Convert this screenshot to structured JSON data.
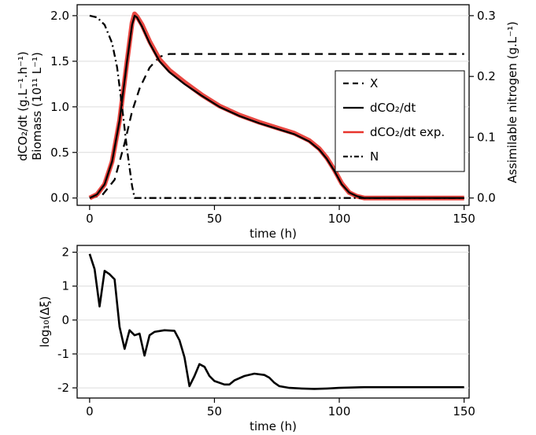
{
  "chart_data": [
    {
      "type": "line",
      "xlabel": "time (h)",
      "ylabel_left_line1": "dCO₂/dt (g.L⁻¹.h⁻¹)",
      "ylabel_left_line2": "Biomass (10¹¹ L⁻¹)",
      "ylabel_right": "Assimilable nitrogen (g.L⁻¹)",
      "xlim": [
        -5,
        152
      ],
      "ylim_left": [
        -0.08,
        2.12
      ],
      "ylim_right": [
        -0.012,
        0.318
      ],
      "x_ticks": [
        "0",
        "50",
        "100",
        "150"
      ],
      "y_left_ticks": [
        "0.0",
        "0.5",
        "1.0",
        "1.5",
        "2.0"
      ],
      "y_right_ticks": [
        "0.0",
        "0.1",
        "0.2",
        "0.3"
      ],
      "grid": "horizontal",
      "legend_position": "right",
      "series": [
        {
          "name": "X",
          "axis": "left",
          "style": "dashed",
          "color": "#000000",
          "x": [
            0,
            5,
            10,
            14,
            17,
            20,
            24,
            28,
            32,
            150
          ],
          "y": [
            0.0,
            0.03,
            0.2,
            0.6,
            0.95,
            1.2,
            1.43,
            1.55,
            1.58,
            1.58
          ]
        },
        {
          "name": "dCO₂/dt",
          "axis": "left",
          "style": "solid",
          "color": "#000000",
          "x": [
            0,
            3,
            6,
            9,
            12,
            15,
            17,
            18,
            19,
            21,
            24,
            28,
            32,
            38,
            45,
            52,
            60,
            68,
            75,
            82,
            88,
            92,
            95,
            98,
            101,
            104,
            107,
            110,
            115,
            150
          ],
          "y": [
            0.0,
            0.04,
            0.15,
            0.4,
            0.85,
            1.5,
            1.9,
            2.0,
            1.98,
            1.88,
            1.7,
            1.5,
            1.38,
            1.25,
            1.12,
            1.0,
            0.9,
            0.82,
            0.76,
            0.7,
            0.62,
            0.53,
            0.43,
            0.3,
            0.15,
            0.06,
            0.02,
            0.0,
            0.0,
            0.0
          ]
        },
        {
          "name": "dCO₂/dt exp.",
          "axis": "left",
          "style": "solid-noisy",
          "color": "#e8342d",
          "x": [
            0,
            3,
            6,
            9,
            12,
            15,
            17,
            18,
            19,
            21,
            24,
            28,
            32,
            38,
            45,
            52,
            60,
            68,
            75,
            82,
            88,
            92,
            95,
            98,
            101,
            104,
            107,
            110,
            115,
            150
          ],
          "y": [
            0.0,
            0.04,
            0.15,
            0.4,
            0.85,
            1.5,
            1.92,
            2.02,
            1.99,
            1.9,
            1.72,
            1.52,
            1.4,
            1.27,
            1.13,
            1.01,
            0.91,
            0.83,
            0.77,
            0.71,
            0.63,
            0.54,
            0.44,
            0.31,
            0.16,
            0.06,
            0.02,
            0.0,
            0.0,
            0.0
          ]
        },
        {
          "name": "N",
          "axis": "right",
          "style": "dash-dot",
          "color": "#000000",
          "x": [
            0,
            3,
            6,
            9,
            11,
            13,
            15,
            17,
            18,
            19,
            150
          ],
          "y": [
            0.3,
            0.297,
            0.285,
            0.255,
            0.215,
            0.15,
            0.08,
            0.02,
            0.0,
            0.0,
            0.0
          ]
        }
      ]
    },
    {
      "type": "line",
      "xlabel": "time (h)",
      "ylabel": "log₁₀(Δξ)",
      "xlim": [
        -5,
        152
      ],
      "ylim": [
        -2.3,
        2.2
      ],
      "x_ticks": [
        "0",
        "50",
        "100",
        "150"
      ],
      "y_ticks": [
        "2",
        "1",
        "0",
        "-1",
        "-2"
      ],
      "grid": "horizontal",
      "series": [
        {
          "color": "#000000",
          "x": [
            0,
            2,
            4,
            6,
            8,
            10,
            12,
            14,
            16,
            18,
            20,
            22,
            24,
            26,
            30,
            34,
            36,
            38,
            40,
            42,
            44,
            46,
            48,
            50,
            54,
            56,
            58,
            62,
            66,
            70,
            72,
            74,
            76,
            80,
            85,
            90,
            95,
            100,
            110,
            120,
            130,
            140,
            150
          ],
          "y": [
            1.95,
            1.5,
            0.4,
            1.45,
            1.35,
            1.2,
            -0.2,
            -0.85,
            -0.3,
            -0.45,
            -0.4,
            -1.05,
            -0.45,
            -0.35,
            -0.3,
            -0.32,
            -0.6,
            -1.1,
            -1.95,
            -1.65,
            -1.3,
            -1.38,
            -1.65,
            -1.8,
            -1.9,
            -1.9,
            -1.78,
            -1.65,
            -1.58,
            -1.62,
            -1.7,
            -1.85,
            -1.95,
            -2.0,
            -2.02,
            -2.03,
            -2.02,
            -2.0,
            -1.98,
            -1.98,
            -1.98,
            -1.98,
            -1.98
          ]
        }
      ]
    }
  ]
}
